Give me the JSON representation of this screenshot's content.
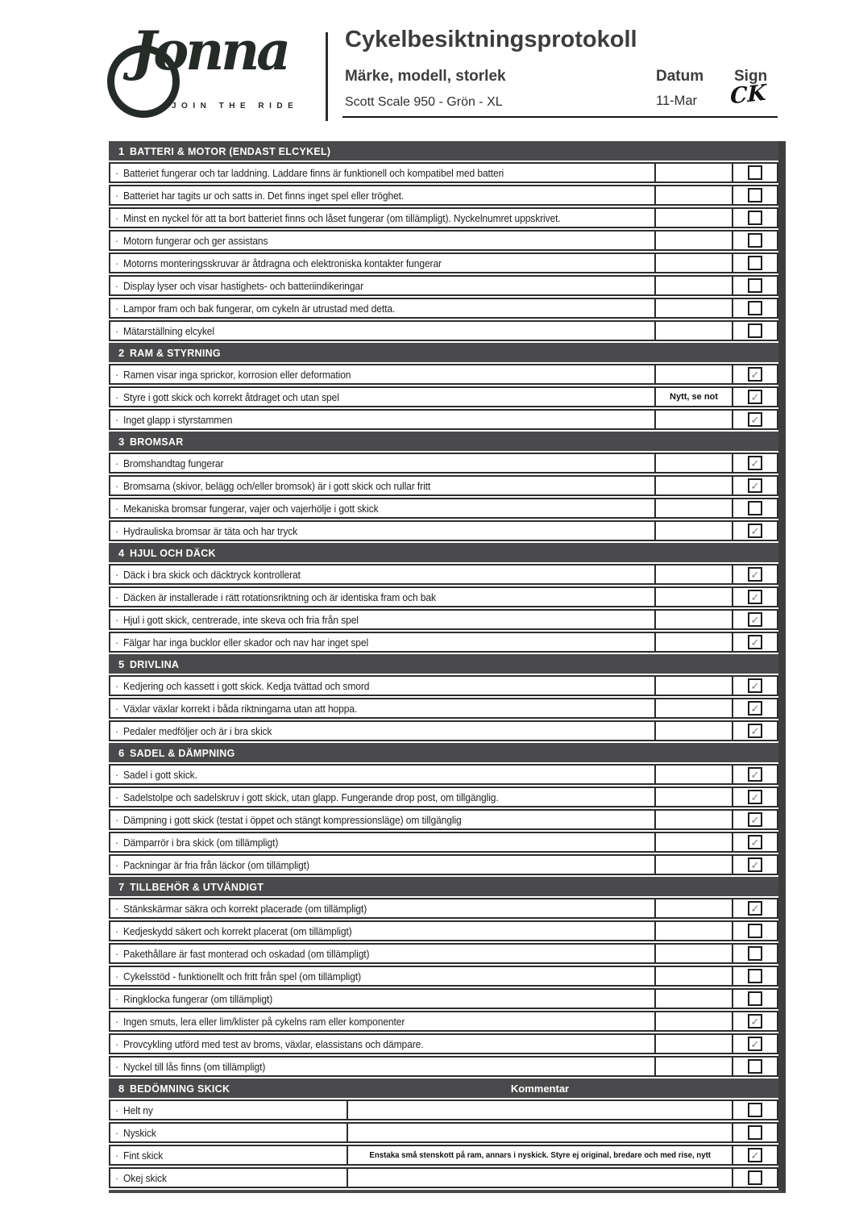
{
  "header": {
    "logo_name": "Jonna",
    "logo_tagline": "JOIN THE RIDE",
    "title": "Cykelbesiktningsprotokoll",
    "field_label": "Märke, modell, storlek",
    "field_value": "Scott Scale 950 - Grön - XL",
    "datum_label": "Datum",
    "datum_value": "11-Mar",
    "sign_label": "Sign",
    "sign_value": "CK"
  },
  "colors": {
    "section_bar": "#4a4a4c",
    "row_border": "#2d2d2d",
    "logo_ink": "#252b27",
    "check_mark": "#7d7d7d"
  },
  "table": {
    "bullet_glyph": "·",
    "check_glyph": "✓",
    "sections": [
      {
        "number": "1",
        "title": "BATTERI & MOTOR (ENDAST ELCYKEL)",
        "rows": [
          {
            "text": "Batteriet fungerar och tar laddning.  Laddare finns är funktionell och kompatibel med batteri",
            "note": "",
            "checked": false
          },
          {
            "text": "Batteriet har tagits ur och satts in. Det finns inget spel eller tröghet.",
            "note": "",
            "checked": false
          },
          {
            "text": "Minst en nyckel för att ta bort batteriet finns och låset fungerar (om tillämpligt). Nyckelnumret uppskrivet.",
            "note": "",
            "checked": false
          },
          {
            "text": "Motorn fungerar och ger assistans",
            "note": "",
            "checked": false
          },
          {
            "text": "Motorns monteringsskruvar är åtdragna och elektroniska kontakter fungerar",
            "note": "",
            "checked": false
          },
          {
            "text": "Display lyser och visar hastighets- och batteriindikeringar",
            "note": "",
            "checked": false
          },
          {
            "text": "Lampor fram och bak fungerar, om cykeln är utrustad med detta.",
            "note": "",
            "checked": false
          },
          {
            "text": "Mätarställning elcykel",
            "note": "",
            "checked": false
          }
        ]
      },
      {
        "number": "2",
        "title": "RAM & STYRNING",
        "rows": [
          {
            "text": "Ramen visar inga sprickor, korrosion eller deformation",
            "note": "",
            "checked": true
          },
          {
            "text": "Styre i gott skick och korrekt åtdraget och utan spel",
            "note": "Nytt, se not",
            "checked": true
          },
          {
            "text": "Inget glapp i styrstammen",
            "note": "",
            "checked": true
          }
        ]
      },
      {
        "number": "3",
        "title": "BROMSAR",
        "rows": [
          {
            "text": "Bromshandtag fungerar",
            "note": "",
            "checked": true
          },
          {
            "text": "Bromsarna (skivor, belägg och/eller bromsok) är i gott skick och rullar fritt",
            "note": "",
            "checked": true
          },
          {
            "text": "Mekaniska bromsar fungerar, vajer och vajerhölje i gott skick",
            "note": "",
            "checked": false
          },
          {
            "text": "Hydrauliska bromsar är täta och har tryck",
            "note": "",
            "checked": true
          }
        ]
      },
      {
        "number": "4",
        "title": "HJUL OCH DÄCK",
        "rows": [
          {
            "text": "Däck i bra skick och däcktryck kontrollerat",
            "note": "",
            "checked": true
          },
          {
            "text": "Däcken är  installerade i rätt rotationsriktning och är identiska fram och bak",
            "note": "",
            "checked": true
          },
          {
            "text": "Hjul i gott skick, centrerade, inte skeva och fria från spel",
            "note": "",
            "checked": true
          },
          {
            "text": "Fälgar har inga bucklor eller skador och nav har inget spel",
            "note": "",
            "checked": true
          }
        ]
      },
      {
        "number": "5",
        "title": "DRIVLINA",
        "rows": [
          {
            "text": "Kedjering och kassett i gott skick. Kedja tvättad och smord",
            "note": "",
            "checked": true
          },
          {
            "text": "Växlar växlar korrekt i båda riktningarna utan att hoppa.",
            "note": "",
            "checked": true
          },
          {
            "text": "Pedaler medföljer och är i bra skick",
            "note": "",
            "checked": true
          }
        ]
      },
      {
        "number": "6",
        "title": "SADEL & DÄMPNING",
        "rows": [
          {
            "text": "Sadel i gott skick.",
            "note": "",
            "checked": true
          },
          {
            "text": "Sadelstolpe och sadelskruv i gott skick, utan glapp. Fungerande drop post, om tillgänglig.",
            "note": "",
            "checked": true
          },
          {
            "text": "Dämpning i gott skick (testat i öppet och stängt kompressionsläge) om tillgänglig",
            "note": "",
            "checked": true
          },
          {
            "text": "Dämparrör i bra skick (om tillämpligt)",
            "note": "",
            "checked": true
          },
          {
            "text": "Packningar är fria från läckor (om tillämpligt)",
            "note": "",
            "checked": true
          }
        ]
      },
      {
        "number": "7",
        "title": "TILLBEHÖR & UTVÄNDIGT",
        "rows": [
          {
            "text": "Stänkskärmar säkra och korrekt placerade (om tillämpligt)",
            "note": "",
            "checked": true
          },
          {
            "text": "Kedjeskydd säkert och korrekt placerat (om tillämpligt)",
            "note": "",
            "checked": false
          },
          {
            "text": "Pakethållare är fast monterad och oskadad (om tillämpligt)",
            "note": "",
            "checked": false
          },
          {
            "text": "Cykelsstöd - funktionellt och fritt från spel (om tillämpligt)",
            "note": "",
            "checked": false
          },
          {
            "text": "Ringklocka fungerar (om tillämpligt)",
            "note": "",
            "checked": false
          },
          {
            "text": "Ingen smuts, lera eller lim/klister på cykelns ram eller komponenter",
            "note": "",
            "checked": true
          },
          {
            "text": "Provcykling utförd med test av broms, växlar, elassistans och dämpare.",
            "note": "",
            "checked": true
          },
          {
            "text": "Nyckel till lås finns (om tillämpligt)",
            "note": "",
            "checked": false
          }
        ]
      },
      {
        "number": "8",
        "title": "BEDÖMNING SKICK",
        "comment_header": "Kommentar",
        "has_comment": true,
        "rows": [
          {
            "text": "Helt ny",
            "comment": "",
            "checked": false
          },
          {
            "text": "Nyskick",
            "comment": "",
            "checked": false
          },
          {
            "text": "Fint skick",
            "comment": "Enstaka små stenskott på ram, annars i nyskick. Styre ej original, bredare och med rise, nytt",
            "checked": true
          },
          {
            "text": "Okej skick",
            "comment": "",
            "checked": false
          }
        ]
      }
    ]
  }
}
